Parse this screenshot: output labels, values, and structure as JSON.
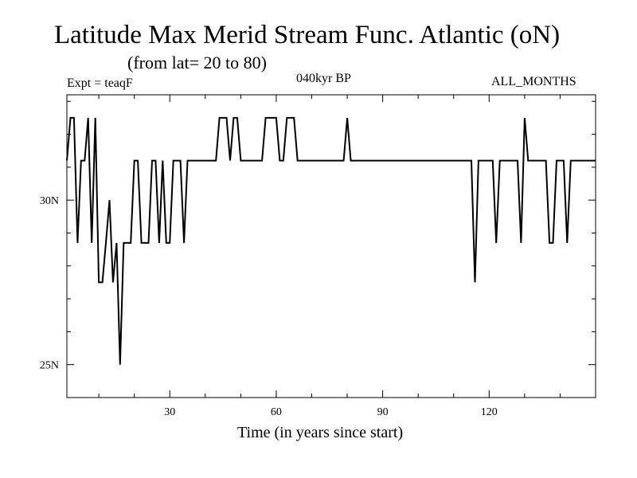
{
  "chart_data": {
    "type": "line",
    "title": "Latitude Max Merid Stream Func. Atlantic (oN)",
    "subtitle": "(from lat= 20 to 80)",
    "experiment_label": "Expt = teaqF",
    "period_label": "040kyr BP",
    "months_label": "ALL_MONTHS",
    "xlabel": "Time (in years since start)",
    "ylabel": "",
    "xlim": [
      1,
      150
    ],
    "ylim": [
      24,
      33.2
    ],
    "x_ticks": [
      30,
      60,
      90,
      120
    ],
    "x_tick_labels": [
      "30",
      "60",
      "90",
      "120"
    ],
    "y_ticks": [
      25,
      30
    ],
    "y_tick_labels": [
      "25N",
      "30N"
    ],
    "line_color": "#000000",
    "series": [
      {
        "name": "latitude",
        "points": [
          [
            1,
            31.2
          ],
          [
            2,
            32.5
          ],
          [
            3,
            32.5
          ],
          [
            4,
            28.7
          ],
          [
            5,
            31.2
          ],
          [
            6,
            31.2
          ],
          [
            7,
            32.5
          ],
          [
            8,
            28.7
          ],
          [
            9,
            32.5
          ],
          [
            10,
            27.5
          ],
          [
            11,
            27.5
          ],
          [
            12,
            28.7
          ],
          [
            13,
            30.0
          ],
          [
            14,
            27.5
          ],
          [
            15,
            28.7
          ],
          [
            16,
            25.0
          ],
          [
            17,
            28.7
          ],
          [
            18,
            28.7
          ],
          [
            19,
            28.7
          ],
          [
            20,
            31.2
          ],
          [
            21,
            31.2
          ],
          [
            22,
            28.7
          ],
          [
            23,
            28.7
          ],
          [
            24,
            28.7
          ],
          [
            25,
            31.2
          ],
          [
            26,
            31.2
          ],
          [
            27,
            28.7
          ],
          [
            28,
            31.2
          ],
          [
            29,
            28.7
          ],
          [
            30,
            28.7
          ],
          [
            31,
            31.2
          ],
          [
            32,
            31.2
          ],
          [
            33,
            31.2
          ],
          [
            34,
            28.7
          ],
          [
            35,
            31.2
          ],
          [
            36,
            31.2
          ],
          [
            37,
            31.2
          ],
          [
            38,
            31.2
          ],
          [
            39,
            31.2
          ],
          [
            40,
            31.2
          ],
          [
            41,
            31.2
          ],
          [
            42,
            31.2
          ],
          [
            43,
            31.2
          ],
          [
            44,
            32.5
          ],
          [
            45,
            32.5
          ],
          [
            46,
            32.5
          ],
          [
            47,
            31.2
          ],
          [
            48,
            32.5
          ],
          [
            49,
            32.5
          ],
          [
            50,
            31.2
          ],
          [
            51,
            31.2
          ],
          [
            52,
            31.2
          ],
          [
            53,
            31.2
          ],
          [
            54,
            31.2
          ],
          [
            55,
            31.2
          ],
          [
            56,
            31.2
          ],
          [
            57,
            32.5
          ],
          [
            58,
            32.5
          ],
          [
            59,
            32.5
          ],
          [
            60,
            32.5
          ],
          [
            61,
            31.2
          ],
          [
            62,
            31.2
          ],
          [
            63,
            32.5
          ],
          [
            64,
            32.5
          ],
          [
            65,
            32.5
          ],
          [
            66,
            31.2
          ],
          [
            67,
            31.2
          ],
          [
            68,
            31.2
          ],
          [
            69,
            31.2
          ],
          [
            70,
            31.2
          ],
          [
            71,
            31.2
          ],
          [
            72,
            31.2
          ],
          [
            73,
            31.2
          ],
          [
            74,
            31.2
          ],
          [
            75,
            31.2
          ],
          [
            76,
            31.2
          ],
          [
            77,
            31.2
          ],
          [
            78,
            31.2
          ],
          [
            79,
            31.2
          ],
          [
            80,
            32.5
          ],
          [
            81,
            31.2
          ],
          [
            82,
            31.2
          ],
          [
            83,
            31.2
          ],
          [
            84,
            31.2
          ],
          [
            85,
            31.2
          ],
          [
            86,
            31.2
          ],
          [
            87,
            31.2
          ],
          [
            88,
            31.2
          ],
          [
            89,
            31.2
          ],
          [
            90,
            31.2
          ],
          [
            91,
            31.2
          ],
          [
            92,
            31.2
          ],
          [
            93,
            31.2
          ],
          [
            94,
            31.2
          ],
          [
            95,
            31.2
          ],
          [
            96,
            31.2
          ],
          [
            97,
            31.2
          ],
          [
            98,
            31.2
          ],
          [
            99,
            31.2
          ],
          [
            100,
            31.2
          ],
          [
            101,
            31.2
          ],
          [
            102,
            31.2
          ],
          [
            103,
            31.2
          ],
          [
            104,
            31.2
          ],
          [
            105,
            31.2
          ],
          [
            106,
            31.2
          ],
          [
            107,
            31.2
          ],
          [
            108,
            31.2
          ],
          [
            109,
            31.2
          ],
          [
            110,
            31.2
          ],
          [
            111,
            31.2
          ],
          [
            112,
            31.2
          ],
          [
            113,
            31.2
          ],
          [
            114,
            31.2
          ],
          [
            115,
            31.2
          ],
          [
            116,
            27.5
          ],
          [
            117,
            31.2
          ],
          [
            118,
            31.2
          ],
          [
            119,
            31.2
          ],
          [
            120,
            31.2
          ],
          [
            121,
            31.2
          ],
          [
            122,
            28.7
          ],
          [
            123,
            31.2
          ],
          [
            124,
            31.2
          ],
          [
            125,
            31.2
          ],
          [
            126,
            31.2
          ],
          [
            127,
            31.2
          ],
          [
            128,
            31.2
          ],
          [
            129,
            28.7
          ],
          [
            130,
            32.5
          ],
          [
            131,
            31.2
          ],
          [
            132,
            31.2
          ],
          [
            133,
            31.2
          ],
          [
            134,
            31.2
          ],
          [
            135,
            31.2
          ],
          [
            136,
            31.2
          ],
          [
            137,
            28.7
          ],
          [
            138,
            28.7
          ],
          [
            139,
            31.2
          ],
          [
            140,
            31.2
          ],
          [
            141,
            31.2
          ],
          [
            142,
            28.7
          ],
          [
            143,
            31.2
          ],
          [
            144,
            31.2
          ],
          [
            145,
            31.2
          ],
          [
            146,
            31.2
          ],
          [
            147,
            31.2
          ],
          [
            148,
            31.2
          ],
          [
            149,
            31.2
          ],
          [
            150,
            31.2
          ]
        ]
      }
    ]
  }
}
